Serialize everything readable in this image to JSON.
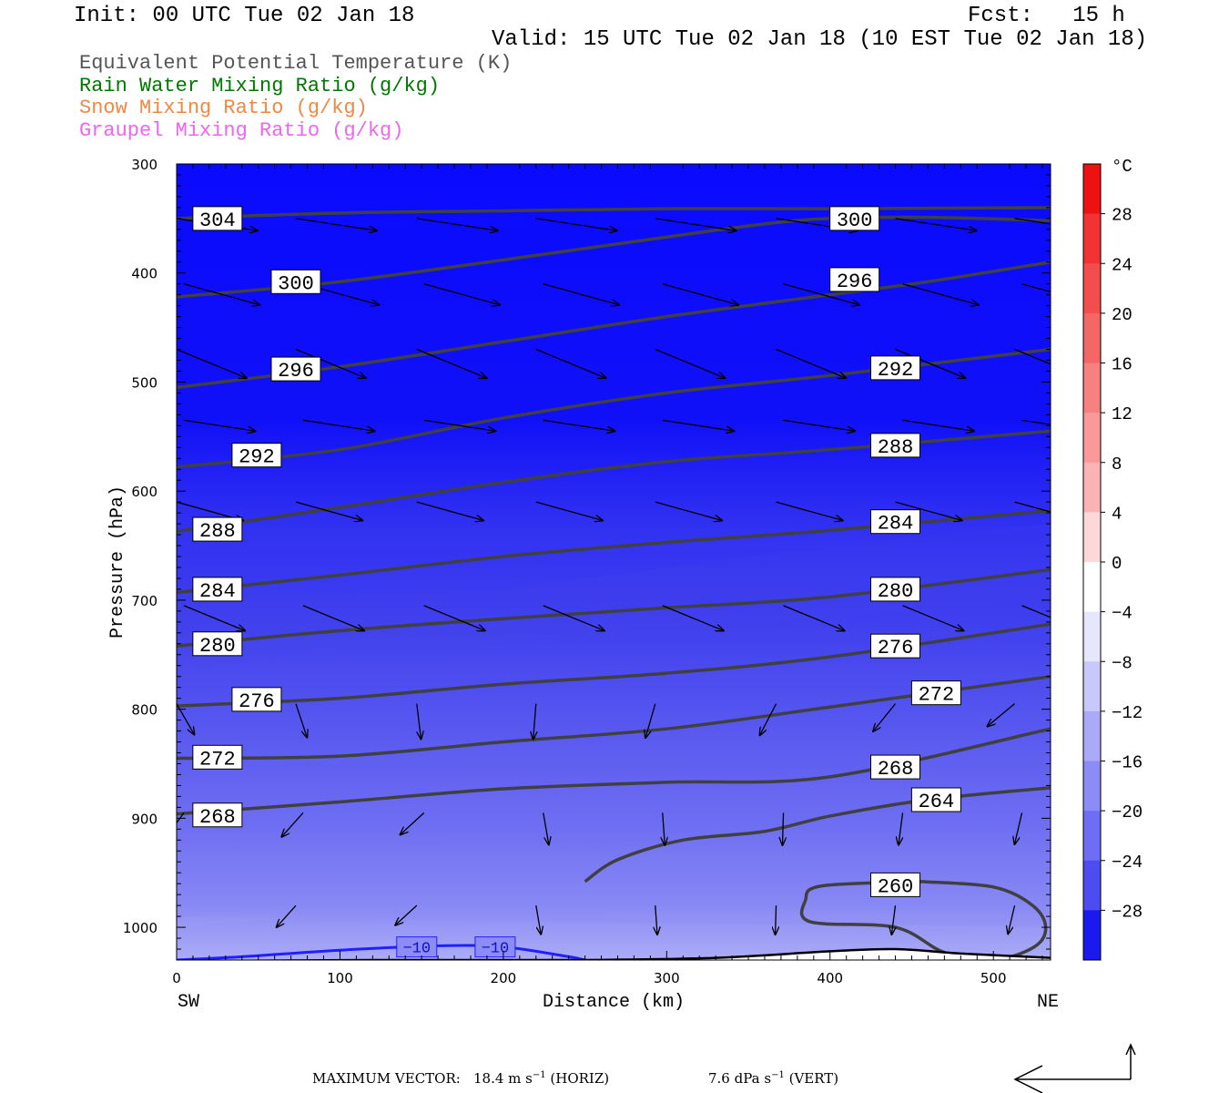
{
  "header": {
    "init": "Init: 00 UTC Tue 02 Jan 18",
    "fcst": "Fcst:   15 h",
    "valid": "Valid: 15 UTC Tue 02 Jan 18 (10 EST Tue 02 Jan 18)"
  },
  "legend": [
    {
      "label": "Equivalent Potential Temperature (K)",
      "color": "#555555"
    },
    {
      "label": "Rain Water Mixing Ratio (g/kg)",
      "color": "#007700"
    },
    {
      "label": "Snow Mixing Ratio (g/kg)",
      "color": "#ee8844"
    },
    {
      "label": "Graupel Mixing Ratio (g/kg)",
      "color": "#ee66ee"
    }
  ],
  "chart_data": {
    "type": "heatmap",
    "xlabel": "Distance (km)",
    "ylabel": "Pressure (hPa)",
    "x_ticks": [
      "0",
      "100",
      "200",
      "300",
      "400",
      "500"
    ],
    "y_ticks": [
      "300",
      "400",
      "500",
      "600",
      "700",
      "800",
      "900",
      "1000"
    ],
    "xlim": [
      0,
      535
    ],
    "ylim": [
      300,
      1030
    ],
    "left_end_label": "SW",
    "right_end_label": "NE",
    "colorbar": {
      "unit": "°C",
      "tick_labels": [
        "28",
        "24",
        "20",
        "16",
        "12",
        "8",
        "4",
        "0",
        "−4",
        "−8",
        "−12",
        "−16",
        "−20",
        "−24",
        "−28"
      ],
      "range": [
        -32,
        32
      ]
    },
    "theta_e_contours": [
      {
        "value": 304,
        "label": "304",
        "points": [
          [
            0,
            350
          ],
          [
            100,
            345
          ],
          [
            200,
            343
          ],
          [
            300,
            341
          ],
          [
            400,
            341
          ],
          [
            535,
            340
          ]
        ],
        "labels_at": [
          [
            25,
            350
          ]
        ]
      },
      {
        "value": 300,
        "label": "300",
        "points": [
          [
            0,
            422
          ],
          [
            100,
            408
          ],
          [
            200,
            388
          ],
          [
            300,
            367
          ],
          [
            360,
            355
          ],
          [
            400,
            350
          ],
          [
            460,
            349
          ],
          [
            535,
            352
          ]
        ],
        "labels_at": [
          [
            73,
            408
          ],
          [
            415,
            350
          ]
        ]
      },
      {
        "value": 296,
        "label": "296",
        "points": [
          [
            0,
            505
          ],
          [
            100,
            486
          ],
          [
            200,
            463
          ],
          [
            300,
            440
          ],
          [
            400,
            420
          ],
          [
            460,
            408
          ],
          [
            535,
            390
          ]
        ],
        "labels_at": [
          [
            73,
            488
          ],
          [
            415,
            406
          ]
        ]
      },
      {
        "value": 292,
        "label": "292",
        "points": [
          [
            0,
            578
          ],
          [
            100,
            562
          ],
          [
            200,
            533
          ],
          [
            300,
            510
          ],
          [
            400,
            494
          ],
          [
            535,
            470
          ]
        ],
        "labels_at": [
          [
            49,
            567
          ],
          [
            440,
            487
          ]
        ]
      },
      {
        "value": 288,
        "label": "288",
        "points": [
          [
            0,
            637
          ],
          [
            100,
            615
          ],
          [
            200,
            592
          ],
          [
            300,
            573
          ],
          [
            400,
            562
          ],
          [
            535,
            545
          ]
        ],
        "labels_at": [
          [
            25,
            635
          ],
          [
            440,
            558
          ]
        ]
      },
      {
        "value": 284,
        "label": "284",
        "points": [
          [
            0,
            693
          ],
          [
            100,
            677
          ],
          [
            200,
            660
          ],
          [
            300,
            647
          ],
          [
            400,
            636
          ],
          [
            535,
            618
          ]
        ],
        "labels_at": [
          [
            25,
            690
          ],
          [
            440,
            628
          ]
        ]
      },
      {
        "value": 280,
        "label": "280",
        "points": [
          [
            0,
            742
          ],
          [
            100,
            728
          ],
          [
            200,
            717
          ],
          [
            300,
            707
          ],
          [
            400,
            697
          ],
          [
            535,
            672
          ]
        ],
        "labels_at": [
          [
            25,
            740
          ],
          [
            440,
            690
          ]
        ]
      },
      {
        "value": 276,
        "label": "276",
        "points": [
          [
            0,
            797
          ],
          [
            100,
            790
          ],
          [
            200,
            777
          ],
          [
            300,
            767
          ],
          [
            400,
            752
          ],
          [
            535,
            722
          ]
        ],
        "labels_at": [
          [
            49,
            791
          ],
          [
            440,
            742
          ]
        ]
      },
      {
        "value": 272,
        "label": "272",
        "points": [
          [
            0,
            845
          ],
          [
            100,
            843
          ],
          [
            200,
            830
          ],
          [
            300,
            818
          ],
          [
            400,
            798
          ],
          [
            535,
            770
          ]
        ],
        "labels_at": [
          [
            25,
            844
          ],
          [
            465,
            785
          ]
        ]
      },
      {
        "value": 268,
        "label": "268",
        "points": [
          [
            0,
            896
          ],
          [
            100,
            885
          ],
          [
            200,
            873
          ],
          [
            300,
            867
          ],
          [
            400,
            862
          ],
          [
            535,
            818
          ]
        ],
        "labels_at": [
          [
            25,
            897
          ],
          [
            440,
            853
          ]
        ]
      },
      {
        "value": 264,
        "label": "264",
        "points": [
          [
            250,
            958
          ],
          [
            270,
            938
          ],
          [
            310,
            920
          ],
          [
            360,
            912
          ],
          [
            400,
            898
          ],
          [
            460,
            883
          ],
          [
            535,
            872
          ]
        ],
        "labels_at": [
          [
            465,
            883
          ]
        ]
      },
      {
        "value": 260,
        "label": "260",
        "points": [
          [
            455,
            958
          ],
          [
            395,
            962
          ],
          [
            385,
            975
          ],
          [
            388,
            995
          ],
          [
            440,
            1000
          ],
          [
            470,
            1023
          ],
          [
            500,
            1030
          ],
          [
            525,
            1018
          ],
          [
            532,
            1000
          ],
          [
            524,
            980
          ],
          [
            500,
            963
          ],
          [
            455,
            958
          ]
        ],
        "labels_at": [
          [
            440,
            961
          ]
        ]
      }
    ],
    "tw_contour": {
      "value": -10,
      "label": "−10",
      "color": "#2020ff",
      "points": [
        [
          0,
          1030
        ],
        [
          40,
          1027
        ],
        [
          100,
          1021
        ],
        [
          160,
          1017
        ],
        [
          200,
          1018
        ],
        [
          240,
          1027
        ],
        [
          250,
          1030
        ]
      ],
      "labels_at": [
        [
          147,
          1018
        ],
        [
          195,
          1018
        ]
      ]
    },
    "wind_barb_rows": [
      350,
      410,
      470,
      535,
      610,
      705,
      795,
      895,
      980
    ]
  },
  "footer": {
    "max_vector_label": "MAXIMUM VECTOR:",
    "horiz_value": "18.4 m s",
    "horiz_exp": "−1",
    "horiz_unit": "(HORIZ)",
    "vert_value": "7.6 dPa s",
    "vert_exp": "−1",
    "vert_unit": "(VERT)"
  }
}
